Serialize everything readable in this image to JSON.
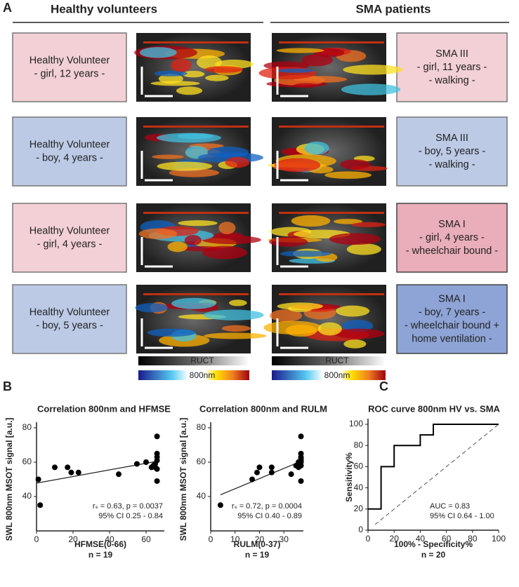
{
  "panel_labels": [
    "A",
    "B",
    "C"
  ],
  "panel_a": {
    "headers": [
      "Healthy volunteers",
      "SMA patients"
    ],
    "rows": [
      {
        "left": [
          "Healthy Volunteer",
          "- girl, 12 years -"
        ],
        "right": [
          "SMA III",
          "- girl, 11 years -",
          "- walking -"
        ]
      },
      {
        "left": [
          "Healthy Volunteer",
          "- boy, 4 years -"
        ],
        "right": [
          "SMA III",
          "- boy, 5 years -",
          "- walking -"
        ]
      },
      {
        "left": [
          "Healthy Volunteer",
          "- girl, 4 years -"
        ],
        "right": [
          "SMA I",
          "- girl, 4 years -",
          "- wheelchair bound -"
        ]
      },
      {
        "left": [
          "Healthy Volunteer",
          "- boy, 5 years -"
        ],
        "right": [
          "SMA I",
          "- boy, 7 years -",
          "- wheelchair bound +",
          "home ventilation -"
        ]
      }
    ],
    "colorbar_labels": [
      "RUCT",
      "800nm"
    ]
  },
  "chart_data": [
    {
      "type": "scatter",
      "title": "Correlation 800nm and HFMSE",
      "x_label": "HFMSE(0-66)",
      "n_label": "n = 19",
      "y_label": "SWL 800nm MSOT signal [a.u.]",
      "annotations": [
        "rₛ = 0.63, p = 0.0037",
        "95% CI 0.25 - 0.84"
      ],
      "x": [
        1,
        2,
        10,
        17,
        19,
        23,
        45,
        55,
        60,
        64,
        65,
        65,
        66,
        66,
        66,
        66,
        66,
        66,
        63
      ],
      "values": [
        50,
        35,
        57,
        57,
        54,
        54,
        53,
        59,
        60,
        58,
        57,
        59,
        61,
        63,
        65,
        75,
        56,
        49,
        57
      ],
      "trend_line": {
        "x": [
          0,
          66
        ],
        "y": [
          47.8,
          60.5
        ]
      },
      "color": "#000000",
      "xlim": [
        0,
        70
      ],
      "ylim": [
        20,
        80
      ],
      "xticks": [
        0,
        20,
        40,
        60
      ],
      "yticks": [
        40,
        60,
        80
      ]
    },
    {
      "type": "scatter",
      "title": "Correlation 800nm and RULM",
      "x_label": "RULM(0-37)",
      "n_label": "n = 19",
      "y_label": "SWL 800nm MSOT signal [a.u.]",
      "annotations": [
        "rₛ = 0.72, p = 0.0004",
        "95% CI 0.40 - 0.89"
      ],
      "x": [
        4,
        17,
        19,
        20,
        25,
        25,
        33,
        36,
        36,
        37,
        37,
        37,
        37,
        37,
        37,
        37,
        37,
        36,
        35
      ],
      "values": [
        35,
        50,
        54,
        57,
        54,
        57,
        53,
        57,
        59,
        58,
        60,
        61,
        62,
        63,
        65,
        75,
        49,
        60,
        58
      ],
      "trend_line": {
        "x": [
          4,
          37
        ],
        "y": [
          41,
          60.5
        ]
      },
      "color": "#000000",
      "xlim": [
        0,
        38
      ],
      "ylim": [
        20,
        80
      ],
      "xticks": [
        0,
        10,
        20,
        30
      ],
      "yticks": [
        40,
        60,
        80
      ]
    },
    {
      "type": "line",
      "title": "ROC curve 800nm HV vs. SMA",
      "x_label": "100% - Specificity%",
      "n_label": "n = 20",
      "y_label": "Sensitivity%",
      "annotations": [
        "AUC = 0.83",
        "95% CI 0.64 - 1.00"
      ],
      "x": [
        0,
        10,
        10,
        20,
        20,
        40,
        40,
        50,
        50,
        100
      ],
      "values": [
        20,
        20,
        60,
        60,
        80,
        80,
        90,
        90,
        100,
        100
      ],
      "color": "#000000",
      "xlim": [
        0,
        100
      ],
      "ylim": [
        0,
        100
      ],
      "xticks": [
        0,
        20,
        40,
        60,
        80,
        100
      ],
      "yticks": [
        0,
        20,
        40,
        60,
        80,
        100
      ]
    }
  ]
}
